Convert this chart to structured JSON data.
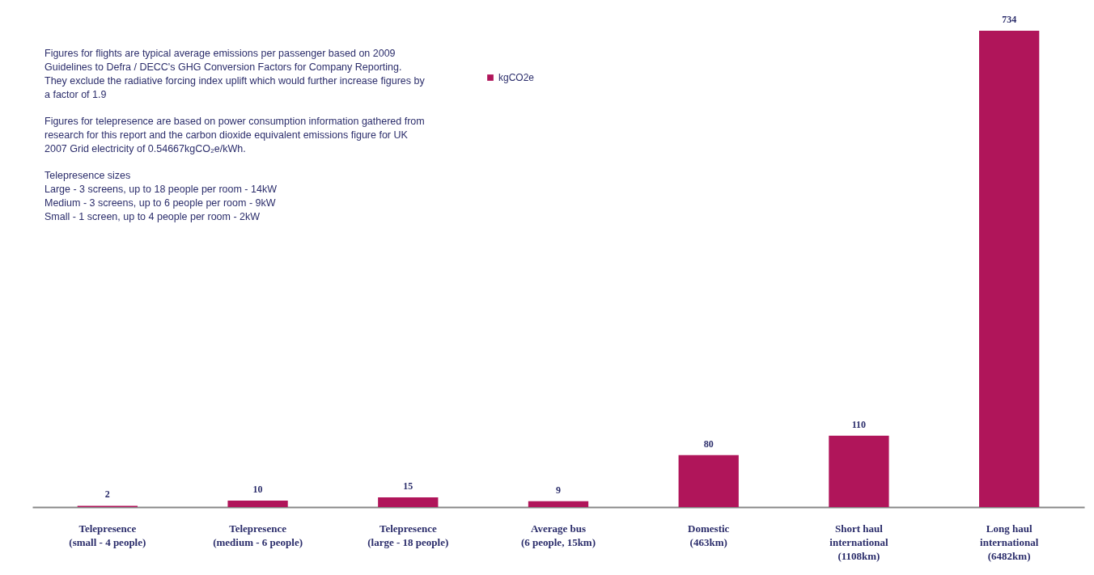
{
  "chart_data": {
    "type": "bar",
    "categories": [
      "Telepresence (small - 4 people)",
      "Telepresence (medium - 6 people)",
      "Telepresence (large - 18 people)",
      "Average bus (6 people, 15km)",
      "Domestic (463km)",
      "Short haul international (1108km)",
      "Long haul international (6482km)"
    ],
    "series": [
      {
        "name": "kgCO2e",
        "color": "#b0155a",
        "values": [
          2,
          10,
          15,
          9,
          80,
          110,
          734
        ]
      }
    ],
    "data_labels": true,
    "legend": "top",
    "grid": false,
    "annotations": [
      "Figures for flights are typical average emissions per passenger based on 2009 Guidelines to Defra / DECC's GHG Conversion Factors for Company Reporting. They exclude the radiative forcing index uplift which would further increase figures by a factor of 1.9",
      "Figures for telepresence are based on power consumption information gathered from research for this report and the carbon dioxide equivalent emissions figure for UK 2007 Grid electricity of 0.54667kgCO₂e/kWh.",
      "Telepresence sizes",
      "Large - 3 screens, up to 18 people per room - 14kW",
      "Medium - 3 screens, up to 6 people per room - 9kW",
      "Small - 1 screen, up to 4 people per room - 2kW"
    ]
  }
}
